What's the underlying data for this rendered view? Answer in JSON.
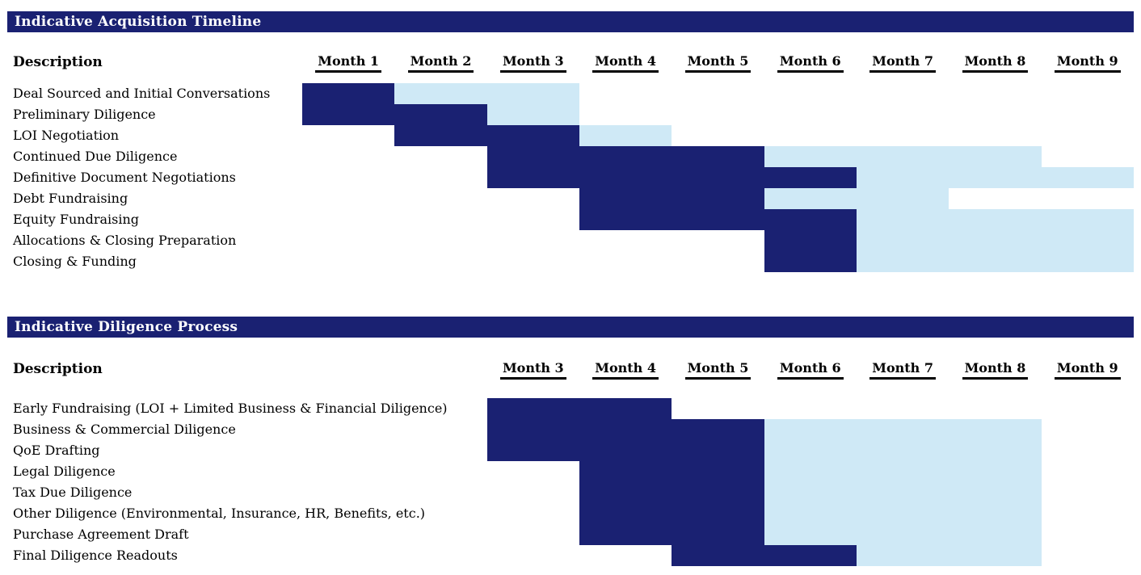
{
  "colors": {
    "section_header_bg": "#1A2172",
    "section_header_text": "#FFFFFF",
    "bar_dark": "#1A2172",
    "bar_light": "#CFE9F6",
    "text": "#000000",
    "background": "#FFFFFF"
  },
  "chart_data": [
    {
      "type": "gantt",
      "title": "Indicative Acquisition Timeline",
      "description_label": "Description",
      "months_shown": [
        "Month 1",
        "Month 2",
        "Month 3",
        "Month 4",
        "Month 5",
        "Month 6",
        "Month 7",
        "Month 8",
        "Month 9"
      ],
      "first_month_shown": 1,
      "month_axis_range": [
        1,
        9
      ],
      "tasks": [
        {
          "label": "Deal Sourced and Initial Conversations",
          "dark_months": [
            1,
            1
          ],
          "light_months": [
            2,
            3
          ]
        },
        {
          "label": "Preliminary Diligence",
          "dark_months": [
            1,
            2
          ],
          "light_months": [
            3,
            3
          ]
        },
        {
          "label": "LOI Negotiation",
          "dark_months": [
            2,
            3
          ],
          "light_months": [
            4,
            4
          ]
        },
        {
          "label": "Continued Due Diligence",
          "dark_months": [
            3,
            5
          ],
          "light_months": [
            6,
            8
          ]
        },
        {
          "label": "Definitive Document Negotiations",
          "dark_months": [
            3,
            6
          ],
          "light_months": [
            7,
            9
          ]
        },
        {
          "label": "Debt Fundraising",
          "dark_months": [
            4,
            5
          ],
          "light_months": [
            6,
            7
          ]
        },
        {
          "label": "Equity Fundraising",
          "dark_months": [
            4,
            6
          ],
          "light_months": [
            7,
            9
          ]
        },
        {
          "label": "Allocations & Closing Preparation",
          "dark_months": [
            6,
            6
          ],
          "light_months": [
            7,
            9
          ]
        },
        {
          "label": "Closing & Funding",
          "dark_months": [
            6,
            6
          ],
          "light_months": [
            7,
            9
          ]
        }
      ]
    },
    {
      "type": "gantt",
      "title": "Indicative Diligence Process",
      "description_label": "Description",
      "months_shown": [
        "Month 3",
        "Month 4",
        "Month 5",
        "Month 6",
        "Month 7",
        "Month 8",
        "Month 9"
      ],
      "first_month_shown": 3,
      "month_axis_range": [
        1,
        9
      ],
      "tasks": [
        {
          "label": "Early Fundraising (LOI + Limited Business & Financial Diligence)",
          "dark_months": [
            3,
            4
          ],
          "light_months": null
        },
        {
          "label": "Business & Commercial Diligence",
          "dark_months": [
            3,
            5
          ],
          "light_months": [
            6,
            8
          ]
        },
        {
          "label": "QoE Drafting",
          "dark_months": [
            3,
            5
          ],
          "light_months": [
            6,
            8
          ]
        },
        {
          "label": "Legal Diligence",
          "dark_months": [
            4,
            5
          ],
          "light_months": [
            6,
            8
          ]
        },
        {
          "label": "Tax Due Diligence",
          "dark_months": [
            4,
            5
          ],
          "light_months": [
            6,
            8
          ]
        },
        {
          "label": "Other Diligence (Environmental, Insurance, HR, Benefits, etc.)",
          "dark_months": [
            4,
            5
          ],
          "light_months": [
            6,
            8
          ]
        },
        {
          "label": "Purchase Agreement Draft",
          "dark_months": [
            4,
            5
          ],
          "light_months": [
            6,
            8
          ]
        },
        {
          "label": "Final Diligence Readouts",
          "dark_months": [
            5,
            6
          ],
          "light_months": [
            7,
            8
          ]
        }
      ]
    }
  ]
}
